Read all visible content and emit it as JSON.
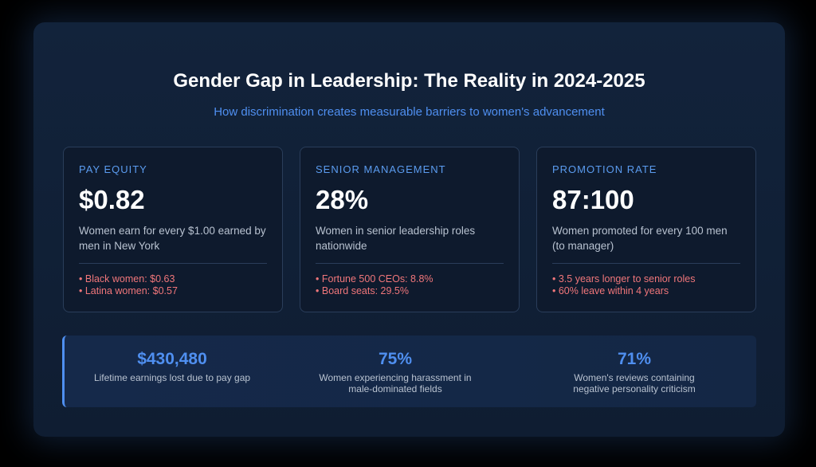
{
  "header": {
    "title": "Gender Gap in Leadership: The Reality in 2024-2025",
    "subtitle": "How discrimination creates measurable barriers to women's advancement"
  },
  "cards": [
    {
      "label": "PAY EQUITY",
      "value": "$0.82",
      "description": "Women earn for every $1.00 earned by men in New York",
      "bullets": [
        "Black women: $0.63",
        "Latina women: $0.57"
      ]
    },
    {
      "label": "SENIOR MANAGEMENT",
      "value": "28%",
      "description": "Women in senior leadership roles nationwide",
      "bullets": [
        "Fortune 500 CEOs: 8.8%",
        "Board seats: 29.5%"
      ]
    },
    {
      "label": "PROMOTION RATE",
      "value": "87:100",
      "description": "Women promoted for every 100 men (to manager)",
      "bullets": [
        "3.5 years longer to senior roles",
        "60% leave within 4 years"
      ]
    }
  ],
  "stats": [
    {
      "value": "$430,480",
      "label": "Lifetime earnings lost due to pay gap"
    },
    {
      "value": "75%",
      "label": "Women experiencing harassment in male-dominated fields"
    },
    {
      "value": "71%",
      "label": "Women's reviews containing negative personality criticism"
    }
  ]
}
